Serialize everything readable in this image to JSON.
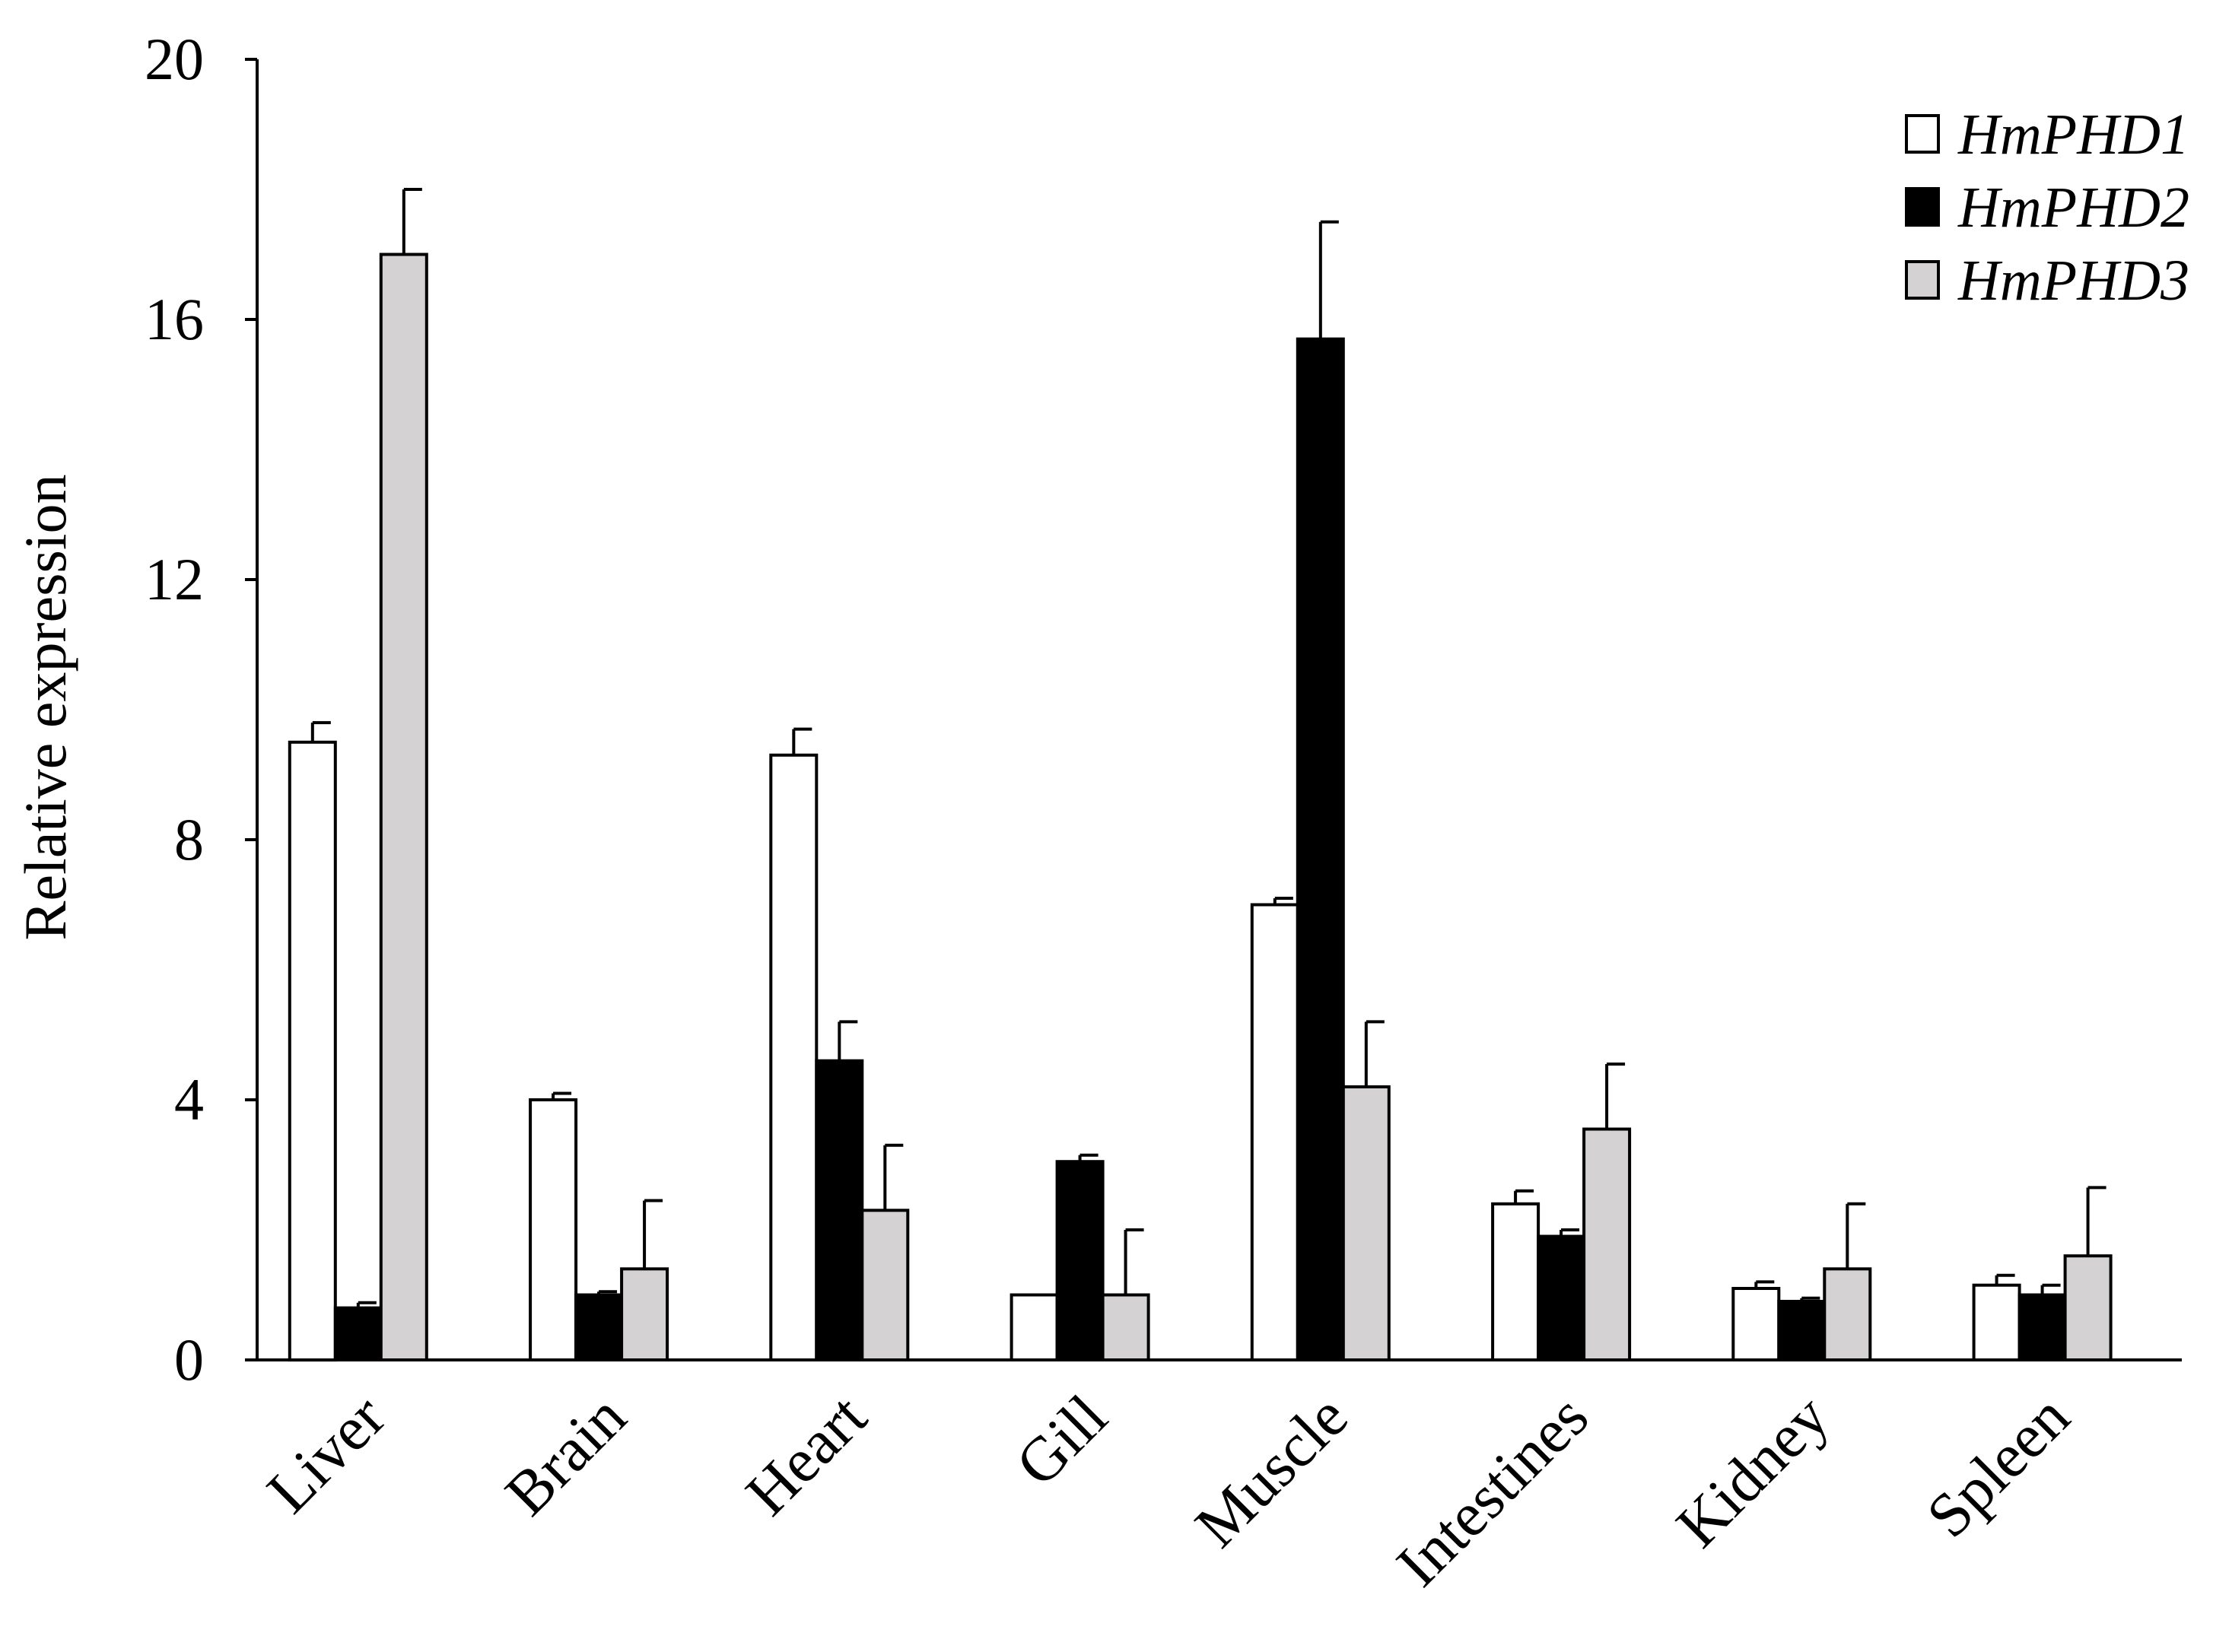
{
  "chart_data": {
    "type": "bar",
    "title": "",
    "xlabel": "",
    "ylabel": "Relative expression",
    "ylim": [
      0,
      20
    ],
    "yticks": [
      "0",
      "4",
      "8",
      "12",
      "16",
      "20"
    ],
    "grid": false,
    "legend_position": "top-right",
    "categories": [
      "Liver",
      "Brain",
      "Heart",
      "Gill",
      "Muscle",
      "Intestines",
      "Kidney",
      "Spleen"
    ],
    "series": [
      {
        "name": "HmPHD1",
        "color": "#ffffff",
        "values": [
          9.5,
          4.0,
          9.3,
          1.0,
          7.0,
          2.4,
          1.1,
          1.15
        ],
        "errors": [
          0.3,
          0.1,
          0.4,
          0.0,
          0.1,
          0.2,
          0.1,
          0.15
        ]
      },
      {
        "name": "HmPHD2",
        "color": "#000000",
        "values": [
          0.8,
          1.0,
          4.6,
          3.05,
          15.7,
          1.9,
          0.9,
          1.0
        ],
        "errors": [
          0.08,
          0.05,
          0.6,
          0.1,
          1.8,
          0.1,
          0.05,
          0.15
        ]
      },
      {
        "name": "HmPHD3",
        "color": "#d4d2d3",
        "values": [
          17.0,
          1.4,
          2.3,
          1.0,
          4.2,
          3.55,
          1.4,
          1.6
        ],
        "errors": [
          1.0,
          1.05,
          1.0,
          1.0,
          1.0,
          1.0,
          1.0,
          1.05
        ]
      }
    ]
  }
}
